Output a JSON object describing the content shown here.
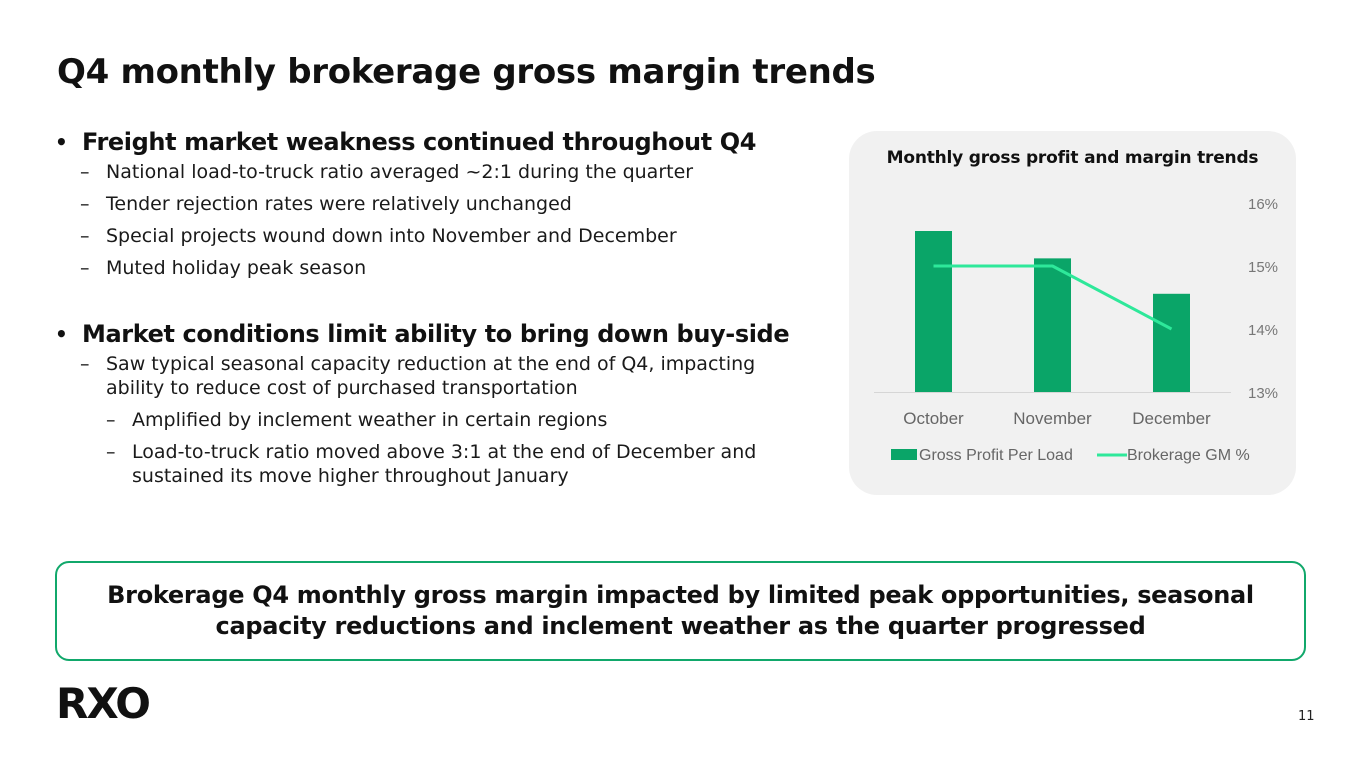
{
  "title": "Q4 monthly brokerage gross margin trends",
  "sections": [
    {
      "heading": "Freight market weakness continued throughout Q4",
      "items": [
        "National load-to-truck ratio averaged ~2:1 during the quarter",
        "Tender rejection rates were relatively unchanged",
        "Special projects wound down into November and December",
        "Muted holiday peak season"
      ]
    },
    {
      "heading": "Market conditions limit ability to bring down buy-side",
      "items": [
        "Saw typical seasonal capacity reduction at the end of Q4, impacting ability to reduce cost of purchased transportation"
      ],
      "subitems": [
        "Amplified by inclement weather in certain regions",
        "Load-to-truck ratio moved above 3:1 at the end of December and sustained its move higher throughout January"
      ]
    }
  ],
  "chart_data": {
    "type": "bar",
    "title": "Monthly gross profit and margin trends",
    "categories": [
      "October",
      "November",
      "December"
    ],
    "series": [
      {
        "name": "Gross Profit Per Load",
        "type": "bar",
        "axis": "left",
        "values": [
          100,
          83,
          61
        ],
        "note": "relative values, no left axis shown"
      },
      {
        "name": "Brokerage GM %",
        "type": "line",
        "axis": "right",
        "values": [
          15.0,
          15.0,
          14.0
        ]
      }
    ],
    "y2lim": [
      13,
      16
    ],
    "y2ticks": [
      "16%",
      "15%",
      "14%",
      "13%"
    ],
    "legend": "bottom",
    "colors": {
      "bar": "#0aa568",
      "line": "#2ee89a"
    }
  },
  "callout": "Brokerage Q4 monthly gross margin impacted by limited peak opportunities, seasonal capacity reductions and inclement weather as the quarter progressed",
  "logo": "RXO",
  "page_number": "11"
}
